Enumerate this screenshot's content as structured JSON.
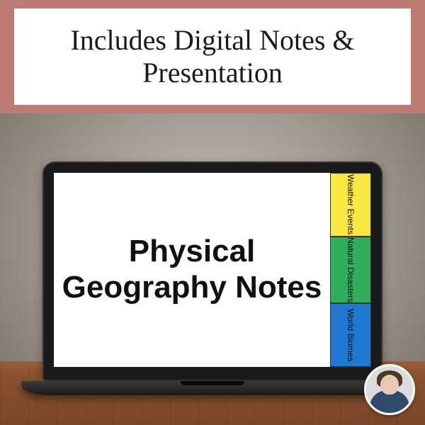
{
  "header": {
    "text": "Includes Digital Notes & Presentation",
    "band_color": "#bd7b73",
    "box_background": "#ffffff",
    "text_color": "#1a1a1a",
    "fontsize": 40
  },
  "screen": {
    "title": "Physical Geography Notes",
    "title_fontsize": 44,
    "title_color": "#111111",
    "background": "#ffffff"
  },
  "tabs": [
    {
      "label": "Weather Events",
      "color": "#f9e742"
    },
    {
      "label": "Natural Disasters",
      "color": "#2fae5b"
    },
    {
      "label": "World Biomes",
      "color": "#1f78d1"
    }
  ],
  "colors": {
    "laptop_frame": "#1a1a1a",
    "desk_wood": "#8a522f",
    "wall_light": "#c8c2bc",
    "wall_dark": "#756c64",
    "avatar_ring": "#ffffff"
  }
}
